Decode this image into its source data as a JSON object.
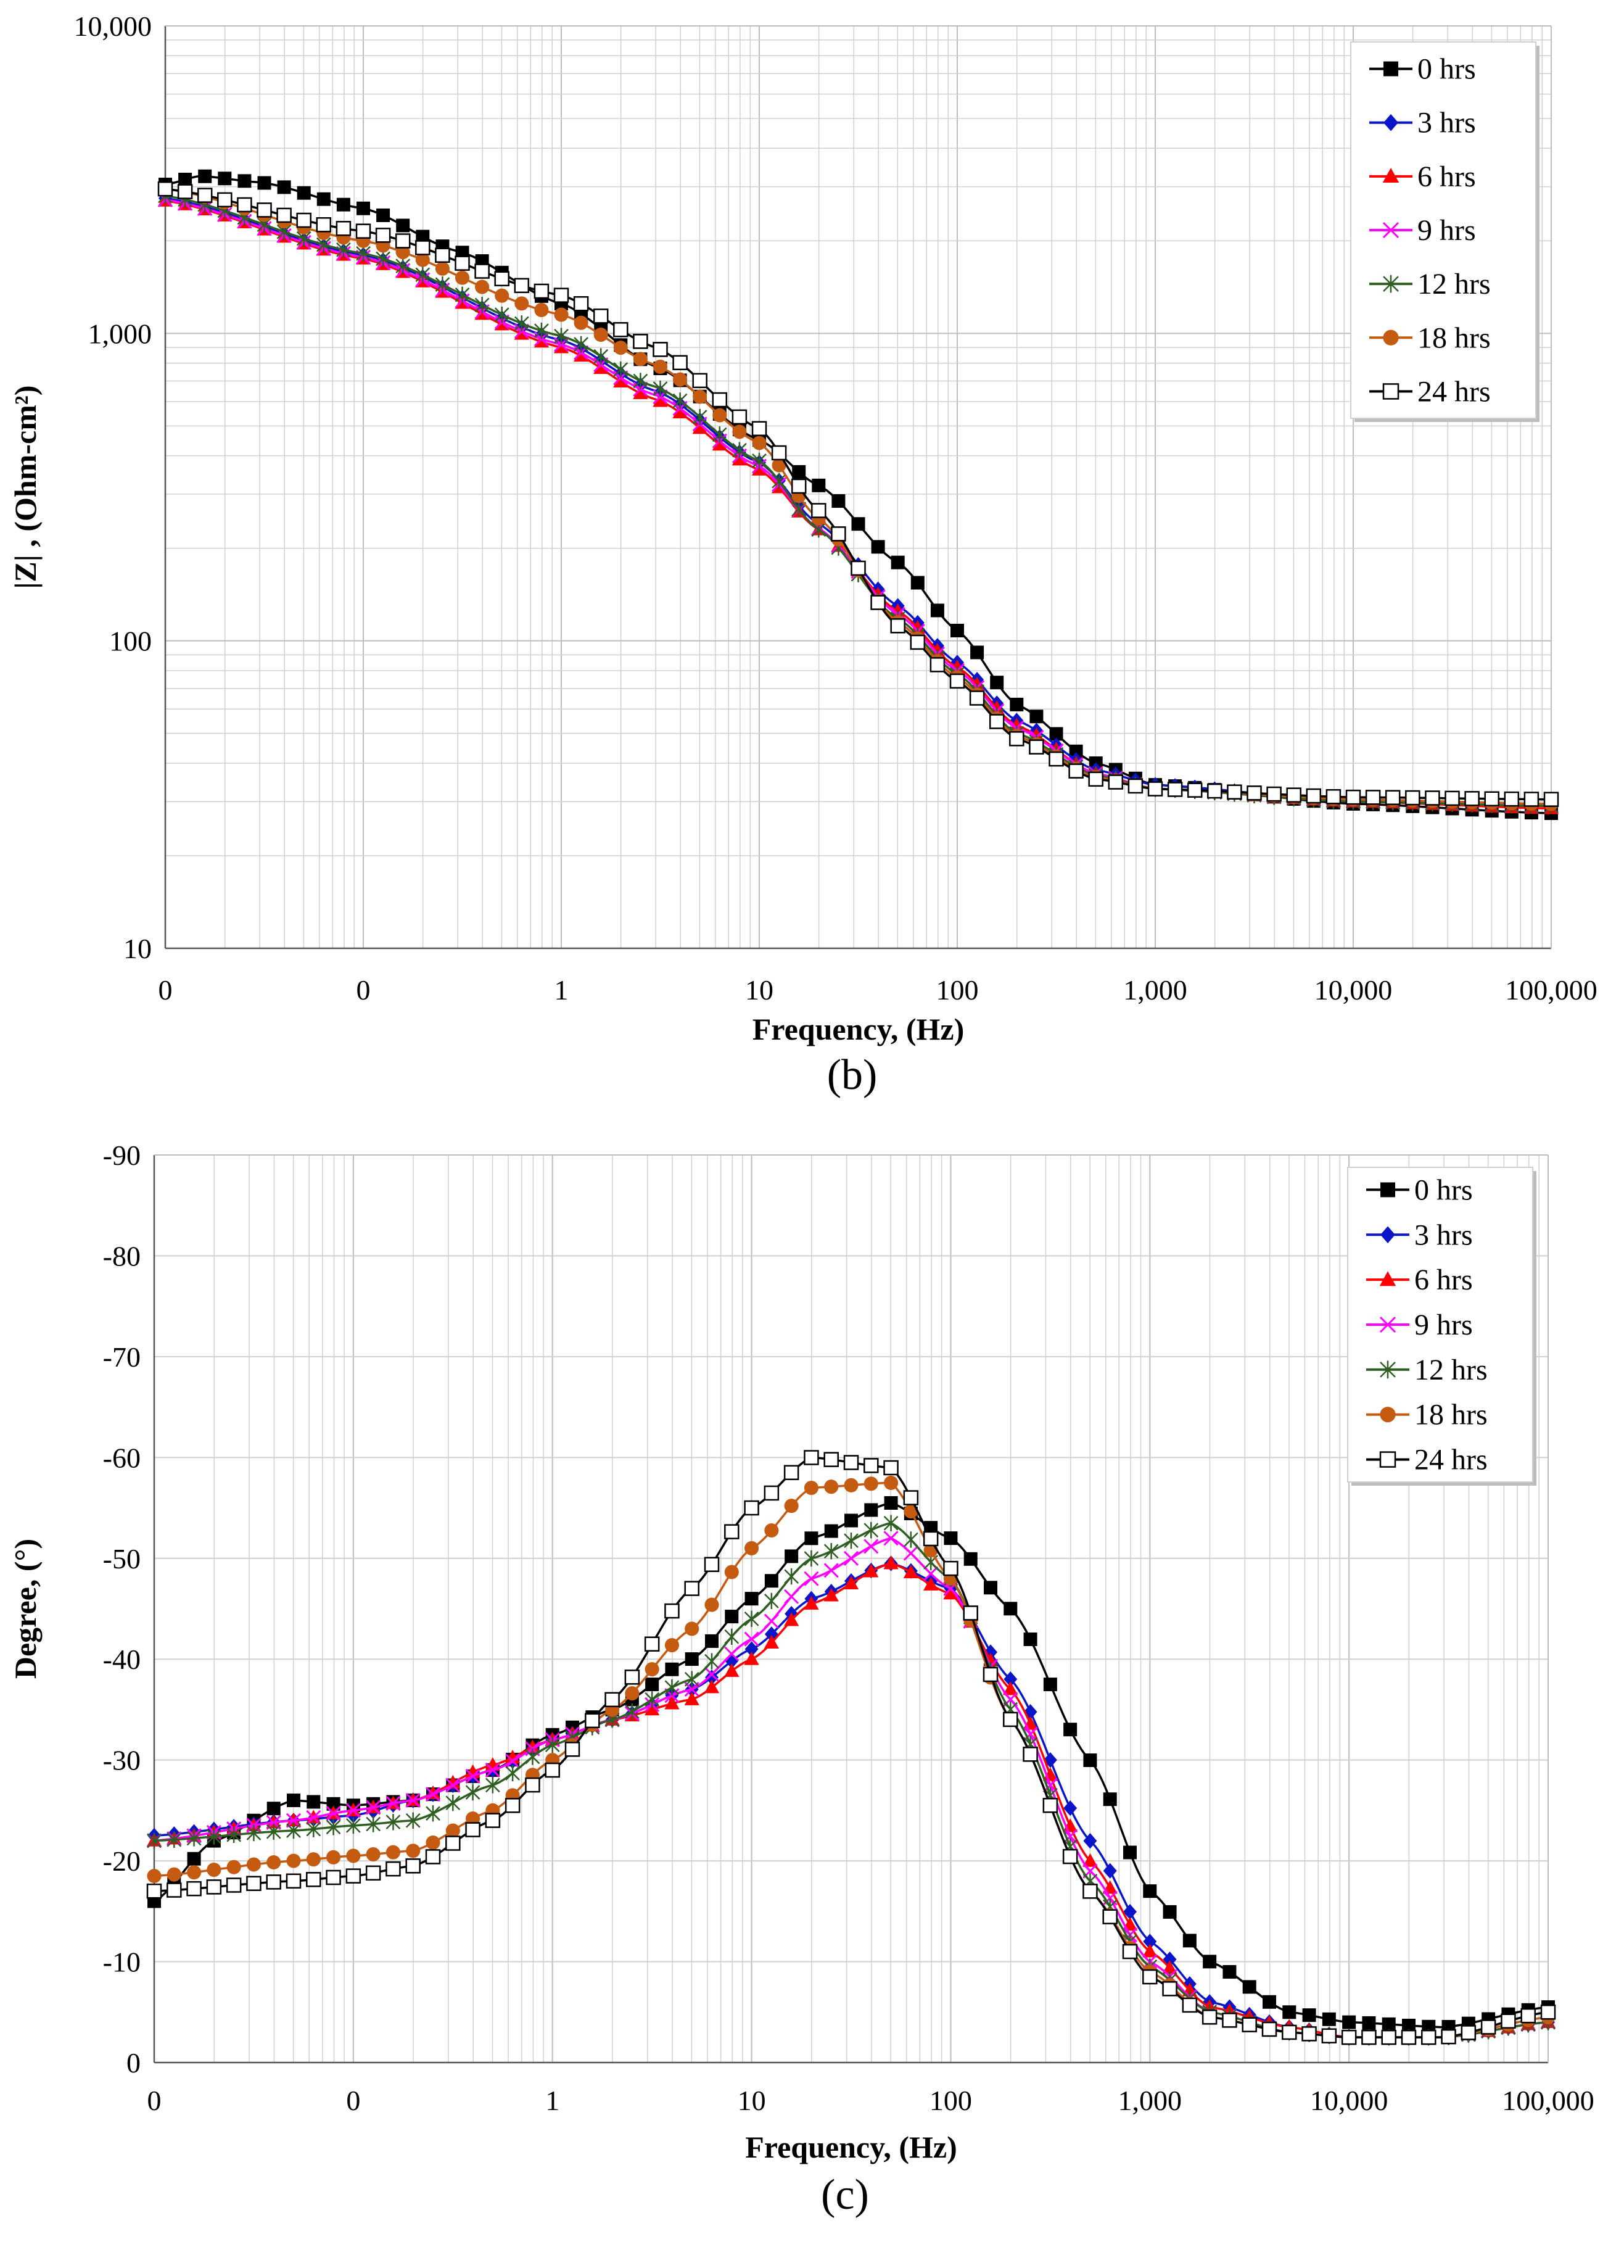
{
  "colors": {
    "s0": "#000000",
    "s3": "#0a14c8",
    "s6": "#ff0000",
    "s9": "#ff00ff",
    "s12": "#2e5e22",
    "s18": "#c55a11",
    "s24": "#000000",
    "grid": "#d0d0d0"
  },
  "chart_data": [
    {
      "type": "line",
      "panel_label": "(b)",
      "xlabel": "Frequency, (Hz)",
      "ylabel": "|Z| , (Ohm-cm²)",
      "xscale": "log",
      "yscale": "log",
      "xlim": [
        0.01,
        100000
      ],
      "ylim": [
        10,
        10000
      ],
      "x_tick_labels": [
        "0",
        "0",
        "1",
        "10",
        "100",
        "1,000",
        "10,000",
        "100,000"
      ],
      "y_ticks": [
        10,
        100,
        1000,
        10000
      ],
      "y_tick_labels": [
        "10",
        "100",
        "1,000",
        "10,000"
      ],
      "legend_position": "top-right",
      "series": [
        {
          "name": "0 hrs",
          "color_key": "s0",
          "marker": "square-filled",
          "points": [
            [
              0.01,
              3050
            ],
            [
              0.015,
              3250
            ],
            [
              0.03,
              3100
            ],
            [
              0.1,
              2550
            ],
            [
              0.3,
              1850
            ],
            [
              1,
              1250
            ],
            [
              3,
              780
            ],
            [
              10,
              450
            ],
            [
              20,
              320
            ],
            [
              50,
              180
            ],
            [
              100,
              108
            ],
            [
              200,
              62
            ],
            [
              500,
              40
            ],
            [
              1000,
              34
            ],
            [
              10000,
              29.5
            ],
            [
              100000,
              27.5
            ]
          ]
        },
        {
          "name": "3 hrs",
          "color_key": "s3",
          "marker": "diamond-filled",
          "points": [
            [
              0.01,
              2750
            ],
            [
              0.1,
              1800
            ],
            [
              1,
              950
            ],
            [
              3,
              650
            ],
            [
              10,
              380
            ],
            [
              20,
              240
            ],
            [
              50,
              130
            ],
            [
              100,
              85
            ],
            [
              200,
              55
            ],
            [
              500,
              38
            ],
            [
              1000,
              34
            ],
            [
              10000,
              30
            ],
            [
              100000,
              29
            ]
          ]
        },
        {
          "name": "6 hrs",
          "color_key": "s6",
          "marker": "triangle-filled",
          "points": [
            [
              0.01,
              2700
            ],
            [
              0.1,
              1750
            ],
            [
              1,
              900
            ],
            [
              3,
              610
            ],
            [
              10,
              360
            ],
            [
              20,
              230
            ],
            [
              50,
              125
            ],
            [
              100,
              82
            ],
            [
              200,
              53
            ],
            [
              500,
              37
            ],
            [
              1000,
              33
            ],
            [
              10000,
              30
            ],
            [
              100000,
              28.5
            ]
          ]
        },
        {
          "name": "9 hrs",
          "color_key": "s9",
          "marker": "x",
          "points": [
            [
              0.01,
              2720
            ],
            [
              0.1,
              1770
            ],
            [
              1,
              920
            ],
            [
              3,
              630
            ],
            [
              10,
              370
            ],
            [
              20,
              232
            ],
            [
              50,
              122
            ],
            [
              100,
              80
            ],
            [
              200,
              52
            ],
            [
              500,
              37
            ],
            [
              1000,
              33
            ],
            [
              10000,
              30
            ],
            [
              100000,
              29
            ]
          ]
        },
        {
          "name": "12 hrs",
          "color_key": "s12",
          "marker": "star",
          "points": [
            [
              0.01,
              2800
            ],
            [
              0.1,
              1820
            ],
            [
              1,
              980
            ],
            [
              3,
              670
            ],
            [
              10,
              385
            ],
            [
              20,
              230
            ],
            [
              50,
              118
            ],
            [
              100,
              78
            ],
            [
              200,
              50
            ],
            [
              500,
              36.5
            ],
            [
              1000,
              33
            ],
            [
              10000,
              30
            ],
            [
              100000,
              29
            ]
          ]
        },
        {
          "name": "18 hrs",
          "color_key": "s18",
          "marker": "circle-filled",
          "points": [
            [
              0.01,
              2950
            ],
            [
              0.1,
              2000
            ],
            [
              1,
              1150
            ],
            [
              3,
              790
            ],
            [
              10,
              440
            ],
            [
              20,
              250
            ],
            [
              50,
              115
            ],
            [
              100,
              76
            ],
            [
              200,
              49
            ],
            [
              500,
              36
            ],
            [
              1000,
              33
            ],
            [
              10000,
              30.5
            ],
            [
              100000,
              29.5
            ]
          ]
        },
        {
          "name": "24 hrs",
          "color_key": "s24",
          "marker": "square-open",
          "points": [
            [
              0.01,
              2950
            ],
            [
              0.1,
              2150
            ],
            [
              1,
              1330
            ],
            [
              3,
              900
            ],
            [
              10,
              490
            ],
            [
              20,
              265
            ],
            [
              50,
              112
            ],
            [
              100,
              74
            ],
            [
              200,
              48
            ],
            [
              500,
              35.5
            ],
            [
              1000,
              33
            ],
            [
              10000,
              31
            ],
            [
              100000,
              30.5
            ]
          ]
        }
      ]
    },
    {
      "type": "line",
      "panel_label": "(c)",
      "xlabel": "Frequency, (Hz)",
      "ylabel": "Degree, (°)",
      "xscale": "log",
      "yscale": "linear",
      "xlim": [
        0.01,
        100000
      ],
      "ylim": [
        0,
        -90
      ],
      "x_tick_labels": [
        "0",
        "0",
        "1",
        "10",
        "100",
        "1,000",
        "10,000",
        "100,000"
      ],
      "y_ticks": [
        0,
        -10,
        -20,
        -30,
        -40,
        -50,
        -60,
        -70,
        -80,
        -90
      ],
      "y_tick_labels": [
        "0",
        "-10",
        "-20",
        "-30",
        "-40",
        "-50",
        "-60",
        "-70",
        "-80",
        "-90"
      ],
      "legend_position": "top-right",
      "series": [
        {
          "name": "0 hrs",
          "color_key": "s0",
          "marker": "square-filled",
          "points": [
            [
              0.01,
              -16
            ],
            [
              0.02,
              -22
            ],
            [
              0.05,
              -26
            ],
            [
              0.1,
              -25.5
            ],
            [
              0.2,
              -26
            ],
            [
              0.5,
              -29
            ],
            [
              1,
              -32.5
            ],
            [
              2,
              -35
            ],
            [
              5,
              -40
            ],
            [
              10,
              -46
            ],
            [
              20,
              -52
            ],
            [
              50,
              -55.5
            ],
            [
              100,
              -52
            ],
            [
              200,
              -45
            ],
            [
              500,
              -30
            ],
            [
              1000,
              -17
            ],
            [
              2000,
              -10
            ],
            [
              5000,
              -5
            ],
            [
              10000,
              -4
            ],
            [
              30000,
              -3.5
            ],
            [
              100000,
              -5.5
            ]
          ]
        },
        {
          "name": "3 hrs",
          "color_key": "s3",
          "marker": "diamond-filled",
          "points": [
            [
              0.01,
              -22.5
            ],
            [
              0.05,
              -24
            ],
            [
              0.1,
              -24.5
            ],
            [
              0.2,
              -26
            ],
            [
              0.5,
              -29
            ],
            [
              1,
              -32
            ],
            [
              2,
              -34
            ],
            [
              5,
              -37
            ],
            [
              10,
              -41
            ],
            [
              20,
              -46
            ],
            [
              50,
              -49.5
            ],
            [
              100,
              -47
            ],
            [
              200,
              -38
            ],
            [
              500,
              -22
            ],
            [
              1000,
              -12
            ],
            [
              2000,
              -6
            ],
            [
              5000,
              -3.5
            ],
            [
              10000,
              -2.5
            ],
            [
              30000,
              -2.5
            ],
            [
              100000,
              -4
            ]
          ]
        },
        {
          "name": "6 hrs",
          "color_key": "s6",
          "marker": "triangle-filled",
          "points": [
            [
              0.01,
              -22
            ],
            [
              0.05,
              -24
            ],
            [
              0.1,
              -25
            ],
            [
              0.2,
              -26
            ],
            [
              0.5,
              -29.5
            ],
            [
              1,
              -32
            ],
            [
              2,
              -34
            ],
            [
              5,
              -36
            ],
            [
              10,
              -40
            ],
            [
              20,
              -45.5
            ],
            [
              50,
              -49.5
            ],
            [
              100,
              -46.5
            ],
            [
              200,
              -37
            ],
            [
              500,
              -20
            ],
            [
              1000,
              -11
            ],
            [
              2000,
              -5.5
            ],
            [
              5000,
              -3.5
            ],
            [
              10000,
              -2.5
            ],
            [
              30000,
              -2.5
            ],
            [
              100000,
              -4
            ]
          ]
        },
        {
          "name": "9 hrs",
          "color_key": "s9",
          "marker": "x",
          "points": [
            [
              0.01,
              -22
            ],
            [
              0.05,
              -24
            ],
            [
              0.1,
              -25
            ],
            [
              0.2,
              -26
            ],
            [
              0.5,
              -29
            ],
            [
              1,
              -32
            ],
            [
              2,
              -34
            ],
            [
              5,
              -37
            ],
            [
              10,
              -42
            ],
            [
              20,
              -48
            ],
            [
              50,
              -52
            ],
            [
              100,
              -47
            ],
            [
              200,
              -36
            ],
            [
              500,
              -19
            ],
            [
              1000,
              -10
            ],
            [
              2000,
              -5
            ],
            [
              5000,
              -3
            ],
            [
              10000,
              -2.5
            ],
            [
              30000,
              -2.5
            ],
            [
              100000,
              -4
            ]
          ]
        },
        {
          "name": "12 hrs",
          "color_key": "s12",
          "marker": "star",
          "points": [
            [
              0.01,
              -22
            ],
            [
              0.05,
              -23
            ],
            [
              0.1,
              -23.5
            ],
            [
              0.2,
              -24
            ],
            [
              0.5,
              -27.5
            ],
            [
              1,
              -31.5
            ],
            [
              2,
              -34
            ],
            [
              5,
              -38
            ],
            [
              10,
              -44
            ],
            [
              20,
              -50
            ],
            [
              50,
              -53.5
            ],
            [
              100,
              -48
            ],
            [
              200,
              -35
            ],
            [
              500,
              -18
            ],
            [
              1000,
              -9.5
            ],
            [
              2000,
              -5
            ],
            [
              5000,
              -3
            ],
            [
              10000,
              -2.5
            ],
            [
              30000,
              -2.5
            ],
            [
              100000,
              -4
            ]
          ]
        },
        {
          "name": "18 hrs",
          "color_key": "s18",
          "marker": "circle-filled",
          "points": [
            [
              0.01,
              -18.5
            ],
            [
              0.05,
              -20
            ],
            [
              0.1,
              -20.5
            ],
            [
              0.2,
              -21
            ],
            [
              0.5,
              -25
            ],
            [
              1,
              -30
            ],
            [
              2,
              -35
            ],
            [
              5,
              -43
            ],
            [
              10,
              -51
            ],
            [
              20,
              -57
            ],
            [
              50,
              -57.5
            ],
            [
              100,
              -48
            ],
            [
              200,
              -34
            ],
            [
              500,
              -17
            ],
            [
              1000,
              -9
            ],
            [
              2000,
              -4.5
            ],
            [
              5000,
              -3
            ],
            [
              10000,
              -2.5
            ],
            [
              30000,
              -2.5
            ],
            [
              100000,
              -4.5
            ]
          ]
        },
        {
          "name": "24 hrs",
          "color_key": "s24",
          "marker": "square-open",
          "points": [
            [
              0.01,
              -17
            ],
            [
              0.05,
              -18
            ],
            [
              0.1,
              -18.5
            ],
            [
              0.2,
              -19.5
            ],
            [
              0.5,
              -24
            ],
            [
              1,
              -29
            ],
            [
              2,
              -36
            ],
            [
              5,
              -47
            ],
            [
              10,
              -55
            ],
            [
              20,
              -60
            ],
            [
              50,
              -59
            ],
            [
              100,
              -49
            ],
            [
              200,
              -34
            ],
            [
              500,
              -17
            ],
            [
              1000,
              -8.5
            ],
            [
              2000,
              -4.5
            ],
            [
              5000,
              -3
            ],
            [
              10000,
              -2.5
            ],
            [
              30000,
              -2.5
            ],
            [
              100000,
              -5
            ]
          ]
        }
      ]
    }
  ]
}
